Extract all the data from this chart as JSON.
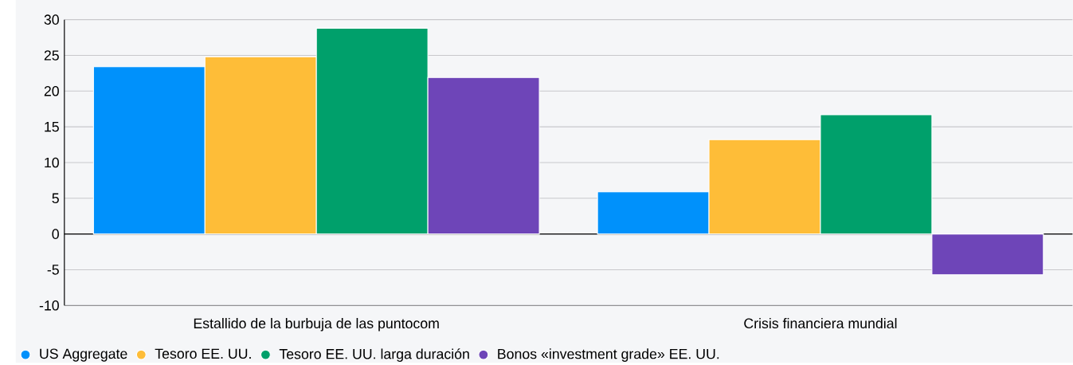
{
  "chart_data": {
    "type": "bar",
    "categories": [
      "Estallido de la burbuja de las puntocom",
      "Crisis financiera mundial"
    ],
    "series": [
      {
        "name": "US Aggregate",
        "color": "#0091fb",
        "values": [
          23.4,
          5.9
        ]
      },
      {
        "name": "Tesoro EE. UU.",
        "color": "#febd38",
        "values": [
          24.8,
          13.2
        ]
      },
      {
        "name": "Tesoro EE. UU. larga duración",
        "color": "#00a06b",
        "values": [
          28.8,
          16.7
        ]
      },
      {
        "name": "Bonos «investment grade» EE. UU.",
        "color": "#6e45b8",
        "values": [
          21.9,
          -5.7
        ]
      }
    ],
    "ylim": [
      -10,
      30
    ],
    "yticks": [
      -10,
      -5,
      0,
      5,
      10,
      15,
      20,
      25,
      30
    ],
    "grid": "y",
    "legend": "bottom left"
  }
}
